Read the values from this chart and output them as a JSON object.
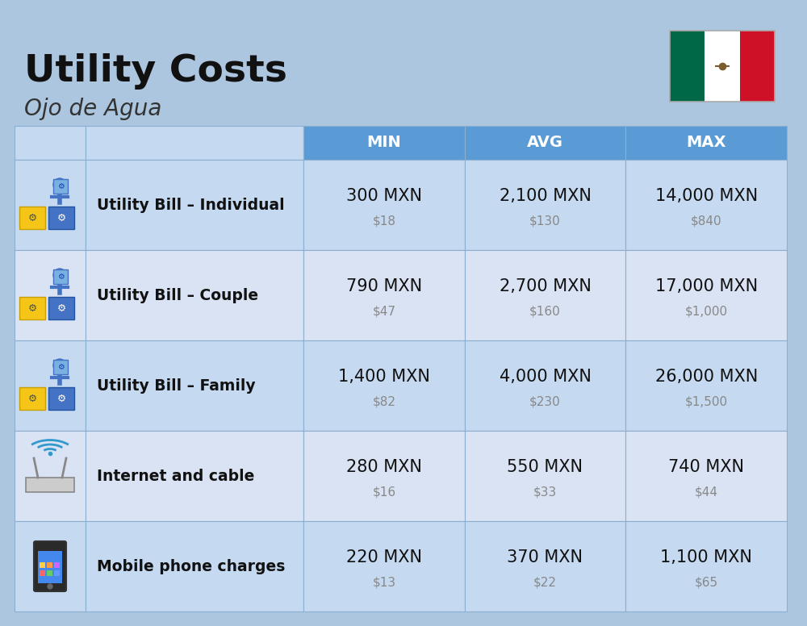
{
  "title": "Utility Costs",
  "subtitle": "Ojo de Agua",
  "background_color": "#adc6e0",
  "header_bg_color": "#5b9bd5",
  "header_text_color": "#ffffff",
  "row_bg_color_1": "#c5d9f1",
  "row_bg_color_2": "#dae3f3",
  "col_headers": [
    "MIN",
    "AVG",
    "MAX"
  ],
  "rows": [
    {
      "label": "Utility Bill – Individual",
      "min_mxn": "300 MXN",
      "min_usd": "$18",
      "avg_mxn": "2,100 MXN",
      "avg_usd": "$130",
      "max_mxn": "14,000 MXN",
      "max_usd": "$840"
    },
    {
      "label": "Utility Bill – Couple",
      "min_mxn": "790 MXN",
      "min_usd": "$47",
      "avg_mxn": "2,700 MXN",
      "avg_usd": "$160",
      "max_mxn": "17,000 MXN",
      "max_usd": "$1,000"
    },
    {
      "label": "Utility Bill – Family",
      "min_mxn": "1,400 MXN",
      "min_usd": "$82",
      "avg_mxn": "4,000 MXN",
      "avg_usd": "$230",
      "max_mxn": "26,000 MXN",
      "max_usd": "$1,500"
    },
    {
      "label": "Internet and cable",
      "min_mxn": "280 MXN",
      "min_usd": "$16",
      "avg_mxn": "550 MXN",
      "avg_usd": "$33",
      "max_mxn": "740 MXN",
      "max_usd": "$44"
    },
    {
      "label": "Mobile phone charges",
      "min_mxn": "220 MXN",
      "min_usd": "$13",
      "avg_mxn": "370 MXN",
      "avg_usd": "$22",
      "max_mxn": "1,100 MXN",
      "max_usd": "$65"
    }
  ],
  "title_fontsize": 34,
  "subtitle_fontsize": 20,
  "header_fontsize": 14,
  "label_fontsize": 13.5,
  "value_fontsize": 15,
  "usd_fontsize": 11,
  "title_color": "#111111",
  "subtitle_color": "#333333",
  "value_color": "#111111",
  "usd_color": "#888888",
  "label_color": "#111111",
  "border_color": "#8aafd0",
  "flag_green": "#006847",
  "flag_white": "#ffffff",
  "flag_red": "#ce1126"
}
